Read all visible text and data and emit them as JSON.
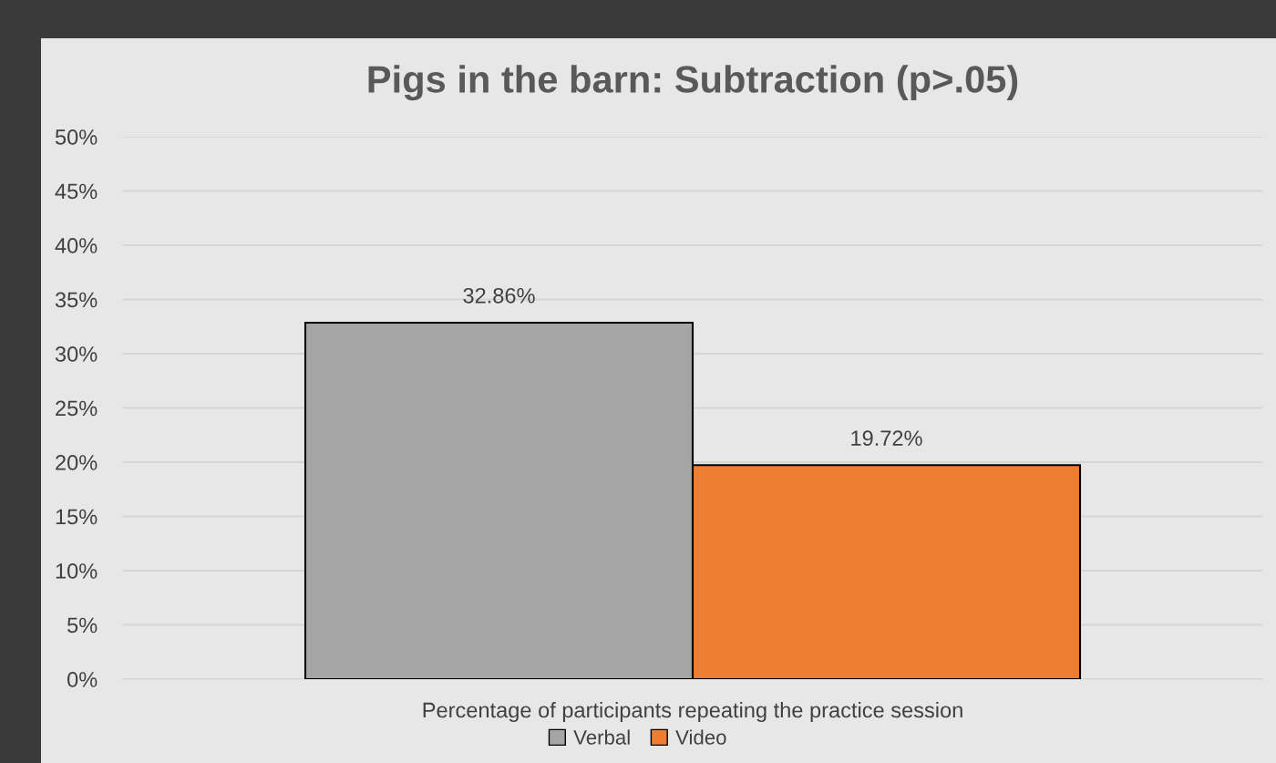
{
  "chart_data": {
    "type": "bar",
    "title": "Pigs in the barn: Subtraction (p>.05)",
    "categories": [
      "Percentage of participants repeating the practice session"
    ],
    "series": [
      {
        "name": "Verbal",
        "color": "#a5a5a5",
        "values": [
          32.86
        ],
        "value_labels": [
          "32.86%"
        ]
      },
      {
        "name": "Video",
        "color": "#ed7d31",
        "values": [
          19.72
        ],
        "value_labels": [
          "19.72%"
        ]
      }
    ],
    "ylim": [
      0,
      50
    ],
    "yticks": [
      {
        "value": 0,
        "label": "0%"
      },
      {
        "value": 5,
        "label": "5%"
      },
      {
        "value": 10,
        "label": "10%"
      },
      {
        "value": 15,
        "label": "15%"
      },
      {
        "value": 20,
        "label": "20%"
      },
      {
        "value": 25,
        "label": "25%"
      },
      {
        "value": 30,
        "label": "30%"
      },
      {
        "value": 35,
        "label": "35%"
      },
      {
        "value": 40,
        "label": "40%"
      },
      {
        "value": 45,
        "label": "45%"
      },
      {
        "value": 50,
        "label": "50%"
      }
    ],
    "grid": "y",
    "legend": "bottom"
  }
}
